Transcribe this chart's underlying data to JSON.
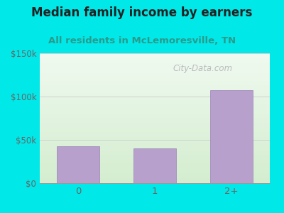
{
  "title": "Median family income by earners",
  "subtitle": "All residents in McLemoresville, TN",
  "categories": [
    "0",
    "1",
    "2+"
  ],
  "values": [
    43000,
    40000,
    107000
  ],
  "bar_color": "#b8a0cc",
  "bar_edge_color": "#9a80b8",
  "ylim": [
    0,
    150000
  ],
  "yticks": [
    0,
    50000,
    100000,
    150000
  ],
  "ytick_labels": [
    "$0",
    "$50k",
    "$100k",
    "$150k"
  ],
  "bg_color": "#00e8e8",
  "plot_bg_top": "#f0faf0",
  "plot_bg_bottom": "#d4edcf",
  "title_color": "#222222",
  "subtitle_color": "#2a9a8a",
  "axis_label_color": "#666666",
  "watermark_text": "City-Data.com",
  "watermark_color": "#bbbbbb",
  "title_fontsize": 12,
  "subtitle_fontsize": 9.5,
  "bar_width": 0.55
}
